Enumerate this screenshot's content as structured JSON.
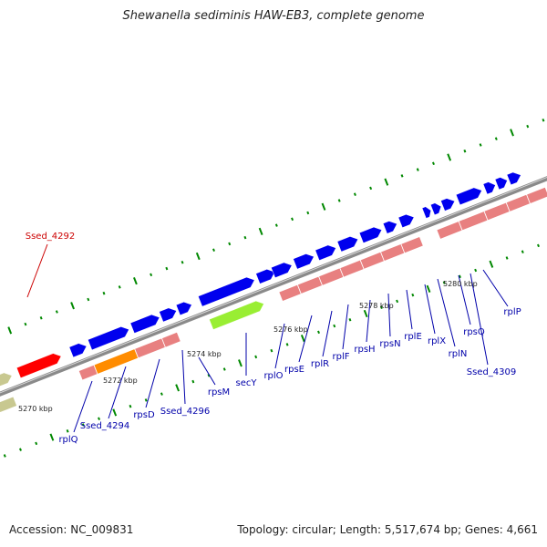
{
  "title": "Shewanella sediminis HAW-EB3, complete genome",
  "footer": {
    "accession": "Accession: NC_009831",
    "summary": "Topology: circular; Length: 5,517,674 bp; Genes: 4,661"
  },
  "colors": {
    "background": "#ffffff",
    "backbone": "#8a8a8a",
    "forward_gene": "#0000ee",
    "reverse_gene": "#e88080",
    "highlight_gene": "#ff0000",
    "orange_gene": "#ff8c00",
    "green_gene": "#99ee33",
    "olive_gene": "#c8c890",
    "tick": "#008800",
    "blue_label": "#0000aa",
    "red_label": "#cc0000",
    "kbp_label": "#222222"
  },
  "scale_labels": [
    "5270 kbp",
    "5272 kbp",
    "5274 kbp",
    "5276 kbp",
    "5278 kbp",
    "5280 kbp"
  ],
  "gene_labels": [
    {
      "text": "Ssed_4292",
      "color": "red"
    },
    {
      "text": "rplQ",
      "color": "blue"
    },
    {
      "text": "Ssed_4294",
      "color": "blue"
    },
    {
      "text": "rpsD",
      "color": "blue"
    },
    {
      "text": "Ssed_4296",
      "color": "blue"
    },
    {
      "text": "rpsM",
      "color": "blue"
    },
    {
      "text": "secY",
      "color": "blue"
    },
    {
      "text": "rplO",
      "color": "blue"
    },
    {
      "text": "rpsE",
      "color": "blue"
    },
    {
      "text": "rplR",
      "color": "blue"
    },
    {
      "text": "rplF",
      "color": "blue"
    },
    {
      "text": "rpsH",
      "color": "blue"
    },
    {
      "text": "rpsN",
      "color": "blue"
    },
    {
      "text": "rplE",
      "color": "blue"
    },
    {
      "text": "rplX",
      "color": "blue"
    },
    {
      "text": "rplN",
      "color": "blue"
    },
    {
      "text": "rpsQ",
      "color": "blue"
    },
    {
      "text": "Ssed_4309",
      "color": "blue"
    },
    {
      "text": "rplP",
      "color": "blue"
    }
  ]
}
